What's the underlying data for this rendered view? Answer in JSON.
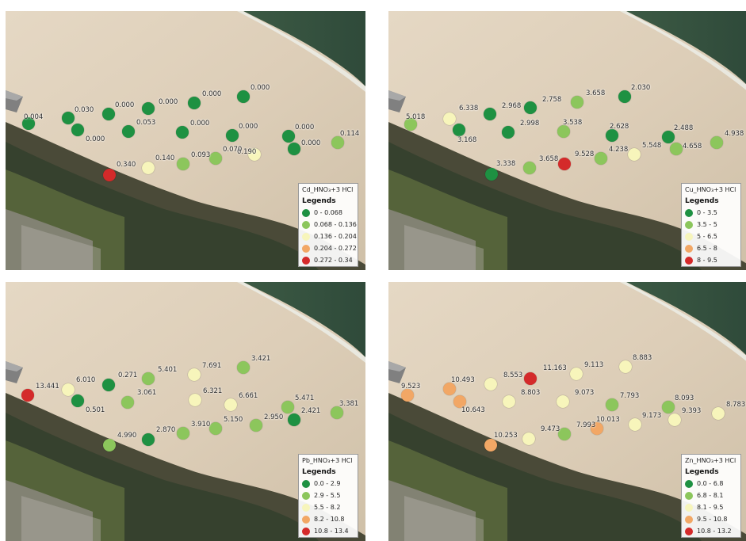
{
  "colors": [
    "#1e9142",
    "#8cc65c",
    "#f7f5bb",
    "#f2a765",
    "#d42a2a"
  ],
  "panels": [
    {
      "id": "cd",
      "legend_title": "Cd_HNO₃+3 HCl",
      "legend_heading": "Legends",
      "ranges": [
        "0 - 0.068",
        "0.068 - 0.136",
        "0.136 - 0.204",
        "0.204 - 0.272",
        "0.272 - 0.34"
      ],
      "points": [
        {
          "value": "0.004",
          "cls": 0
        },
        {
          "value": "0.030",
          "cls": 0
        },
        {
          "value": "0.000",
          "cls": 0
        },
        {
          "value": "0.000",
          "cls": 0
        },
        {
          "value": "0.000",
          "cls": 0
        },
        {
          "value": "0.000",
          "cls": 0
        },
        {
          "value": "0.000",
          "cls": 0
        },
        {
          "value": "0.053",
          "cls": 0
        },
        {
          "value": "0.000",
          "cls": 0
        },
        {
          "value": "0.000",
          "cls": 0
        },
        {
          "value": "0.000",
          "cls": 0
        },
        {
          "value": "0.000",
          "cls": 0
        },
        {
          "value": "0.114",
          "cls": 1
        },
        {
          "value": "0.190",
          "cls": 2
        },
        {
          "value": "0.070",
          "cls": 1
        },
        {
          "value": "0.093",
          "cls": 1
        },
        {
          "value": "0.140",
          "cls": 2
        },
        {
          "value": "0.340",
          "cls": 4
        }
      ]
    },
    {
      "id": "cu",
      "legend_title": "Cu_HNO₃+3 HCl",
      "legend_heading": "Legends",
      "ranges": [
        "0 - 3.5",
        "3.5 - 5",
        "5 - 6.5",
        "6.5 - 8",
        "8 - 9.5"
      ],
      "points": [
        {
          "value": "5.018",
          "cls": 1
        },
        {
          "value": "6.338",
          "cls": 2
        },
        {
          "value": "3.168",
          "cls": 0
        },
        {
          "value": "2.968",
          "cls": 0
        },
        {
          "value": "2.998",
          "cls": 0
        },
        {
          "value": "2.758",
          "cls": 0
        },
        {
          "value": "3.658",
          "cls": 1
        },
        {
          "value": "3.538",
          "cls": 1
        },
        {
          "value": "2.030",
          "cls": 0
        },
        {
          "value": "2.628",
          "cls": 0
        },
        {
          "value": "2.488",
          "cls": 0
        },
        {
          "value": "4.938",
          "cls": 1
        },
        {
          "value": "4.658",
          "cls": 1
        },
        {
          "value": "5.548",
          "cls": 2
        },
        {
          "value": "4.238",
          "cls": 1
        },
        {
          "value": "9.528",
          "cls": 4
        },
        {
          "value": "3.658",
          "cls": 1
        },
        {
          "value": "3.338",
          "cls": 0
        }
      ]
    },
    {
      "id": "pb",
      "legend_title": "Pb_HNO₃+3 HCl",
      "legend_heading": "Legends",
      "ranges": [
        "0.0 - 2.9",
        "2.9 - 5.5",
        "5.5 - 8.2",
        "8.2 - 10.8",
        "10.8 - 13.4"
      ],
      "points": [
        {
          "value": "13.441",
          "cls": 4
        },
        {
          "value": "6.010",
          "cls": 2
        },
        {
          "value": "0.501",
          "cls": 0
        },
        {
          "value": "0.271",
          "cls": 0
        },
        {
          "value": "3.061",
          "cls": 1
        },
        {
          "value": "5.401",
          "cls": 1
        },
        {
          "value": "7.691",
          "cls": 2
        },
        {
          "value": "6.321",
          "cls": 2
        },
        {
          "value": "3.421",
          "cls": 1
        },
        {
          "value": "6.661",
          "cls": 2
        },
        {
          "value": "5.471",
          "cls": 1
        },
        {
          "value": "2.421",
          "cls": 0
        },
        {
          "value": "3.381",
          "cls": 1
        },
        {
          "value": "2.950",
          "cls": 1
        },
        {
          "value": "5.150",
          "cls": 1
        },
        {
          "value": "3.910",
          "cls": 1
        },
        {
          "value": "2.870",
          "cls": 0
        },
        {
          "value": "4.990",
          "cls": 1
        }
      ]
    },
    {
      "id": "zn",
      "legend_title": "Zn_HNO₃+3 HCl",
      "legend_heading": "Legends",
      "ranges": [
        "0.0 - 6.8",
        "6.8 - 8.1",
        "8.1 - 9.5",
        "9.5 - 10.8",
        "10.8 - 13.2"
      ],
      "points": [
        {
          "value": "9.523",
          "cls": 3
        },
        {
          "value": "10.493",
          "cls": 3
        },
        {
          "value": "10.643",
          "cls": 3
        },
        {
          "value": "8.553",
          "cls": 2
        },
        {
          "value": "8.803",
          "cls": 2
        },
        {
          "value": "11.163",
          "cls": 4
        },
        {
          "value": "9.113",
          "cls": 2
        },
        {
          "value": "9.073",
          "cls": 2
        },
        {
          "value": "8.883",
          "cls": 2
        },
        {
          "value": "7.793",
          "cls": 1
        },
        {
          "value": "8.093",
          "cls": 1
        },
        {
          "value": "8.783",
          "cls": 2
        },
        {
          "value": "9.393",
          "cls": 2
        },
        {
          "value": "9.173",
          "cls": 2
        },
        {
          "value": "10.013",
          "cls": 3
        },
        {
          "value": "7.993",
          "cls": 1
        },
        {
          "value": "9.473",
          "cls": 2
        },
        {
          "value": "10.253",
          "cls": 3
        }
      ]
    }
  ]
}
